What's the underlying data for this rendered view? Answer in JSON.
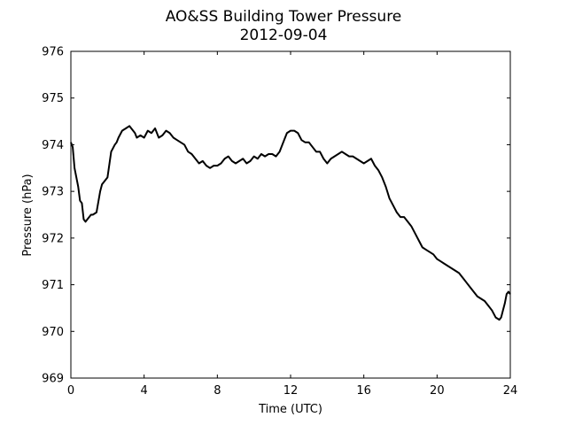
{
  "chart_data": {
    "type": "line",
    "title": "AO&SS Building Tower Pressure",
    "subtitle": "2012-09-04",
    "xlabel": "Time (UTC)",
    "ylabel": "Pressure (hPa)",
    "xlim": [
      0,
      24
    ],
    "ylim": [
      969,
      976
    ],
    "xticks": [
      0,
      4,
      8,
      12,
      16,
      20,
      24
    ],
    "yticks": [
      969,
      970,
      971,
      972,
      973,
      974,
      975,
      976
    ],
    "grid": false,
    "series": [
      {
        "color": "#000000",
        "x": [
          0,
          0.1,
          0.2,
          0.3,
          0.4,
          0.5,
          0.6,
          0.7,
          0.8,
          0.9,
          1.0,
          1.1,
          1.2,
          1.4,
          1.6,
          1.7,
          1.8,
          2.0,
          2.2,
          2.4,
          2.5,
          2.6,
          2.8,
          3.0,
          3.2,
          3.4,
          3.5,
          3.6,
          3.8,
          4.0,
          4.2,
          4.4,
          4.6,
          4.8,
          5.0,
          5.2,
          5.4,
          5.6,
          5.8,
          6.0,
          6.2,
          6.4,
          6.6,
          6.8,
          7.0,
          7.2,
          7.4,
          7.6,
          7.8,
          8.0,
          8.2,
          8.4,
          8.6,
          8.8,
          9.0,
          9.2,
          9.4,
          9.6,
          9.8,
          10.0,
          10.2,
          10.4,
          10.6,
          10.8,
          11.0,
          11.2,
          11.4,
          11.6,
          11.8,
          12.0,
          12.2,
          12.4,
          12.6,
          12.8,
          13.0,
          13.2,
          13.4,
          13.6,
          13.8,
          14.0,
          14.2,
          14.4,
          14.6,
          14.8,
          15.0,
          15.2,
          15.4,
          15.6,
          15.8,
          16.0,
          16.2,
          16.4,
          16.6,
          16.8,
          17.0,
          17.2,
          17.4,
          17.6,
          17.8,
          18.0,
          18.2,
          18.4,
          18.6,
          18.8,
          19.0,
          19.2,
          19.4,
          19.6,
          19.8,
          20.0,
          20.2,
          20.4,
          20.6,
          20.8,
          21.0,
          21.2,
          21.4,
          21.6,
          21.8,
          22.0,
          22.2,
          22.4,
          22.6,
          22.8,
          23.0,
          23.2,
          23.4,
          23.5,
          23.6,
          23.7,
          23.8,
          23.9,
          24.0
        ],
        "y": [
          974.05,
          973.95,
          973.5,
          973.3,
          973.1,
          972.8,
          972.75,
          972.4,
          972.35,
          972.4,
          972.45,
          972.5,
          972.5,
          972.55,
          973.0,
          973.15,
          973.2,
          973.3,
          973.85,
          974.0,
          974.05,
          974.15,
          974.3,
          974.35,
          974.4,
          974.3,
          974.25,
          974.15,
          974.2,
          974.15,
          974.3,
          974.25,
          974.35,
          974.15,
          974.2,
          974.3,
          974.25,
          974.15,
          974.1,
          974.05,
          974.0,
          973.85,
          973.8,
          973.7,
          973.6,
          973.65,
          973.55,
          973.5,
          973.55,
          973.55,
          973.6,
          973.7,
          973.75,
          973.65,
          973.6,
          973.65,
          973.7,
          973.6,
          973.65,
          973.75,
          973.7,
          973.8,
          973.75,
          973.8,
          973.8,
          973.75,
          973.85,
          974.05,
          974.25,
          974.3,
          974.3,
          974.25,
          974.1,
          974.05,
          974.05,
          973.95,
          973.85,
          973.85,
          973.7,
          973.6,
          973.7,
          973.75,
          973.8,
          973.85,
          973.8,
          973.75,
          973.75,
          973.7,
          973.65,
          973.6,
          973.65,
          973.7,
          973.55,
          973.45,
          973.3,
          973.1,
          972.85,
          972.7,
          972.55,
          972.45,
          972.45,
          972.35,
          972.25,
          972.1,
          971.95,
          971.8,
          971.75,
          971.7,
          971.65,
          971.55,
          971.5,
          971.45,
          971.4,
          971.35,
          971.3,
          971.25,
          971.15,
          971.05,
          970.95,
          970.85,
          970.75,
          970.7,
          970.65,
          970.55,
          970.45,
          970.3,
          970.25,
          970.3,
          970.45,
          970.6,
          970.8,
          970.85,
          970.8
        ]
      }
    ]
  }
}
